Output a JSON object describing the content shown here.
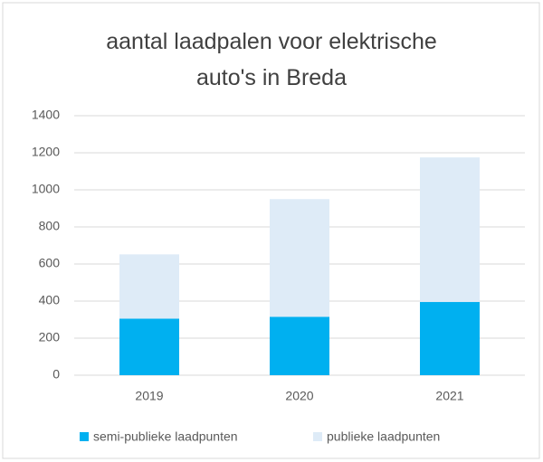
{
  "chart_data": {
    "type": "stacked_bar",
    "title": "aantal laadpalen voor elektrische auto's in Breda",
    "categories": [
      "2019",
      "2020",
      "2021"
    ],
    "series": [
      {
        "name": "semi-publieke laadpunten",
        "color": "#00b0f0",
        "values": [
          305,
          315,
          395
        ]
      },
      {
        "name": "publieke laadpunten",
        "color": "#deebf7",
        "values": [
          347,
          635,
          780
        ]
      }
    ],
    "ylim": [
      0,
      1400
    ],
    "yticks": [
      0,
      200,
      400,
      600,
      800,
      1000,
      1200,
      1400
    ],
    "grid": true,
    "legend": "bottom"
  }
}
